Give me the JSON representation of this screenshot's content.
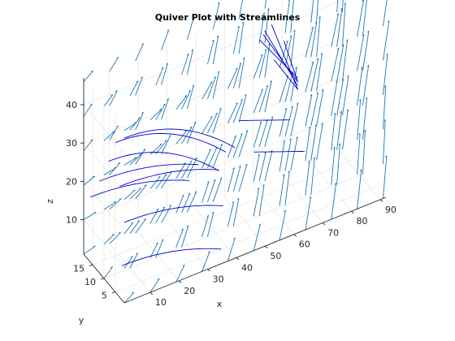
{
  "chart_data": {
    "type": "quiver3d",
    "title": "Quiver Plot with Streamlines",
    "xlabel": "x",
    "ylabel": "y",
    "zlabel": "z",
    "xlim": [
      1,
      92
    ],
    "ylim": [
      1,
      19
    ],
    "zlim": [
      1,
      47
    ],
    "x_ticks": [
      "10",
      "20",
      "30",
      "40",
      "50",
      "60",
      "70",
      "80",
      "90"
    ],
    "y_ticks": [
      "5",
      "10",
      "15"
    ],
    "z_ticks": [
      "10",
      "20",
      "30",
      "40"
    ],
    "grid": true,
    "quiver": {
      "x_grid": [
        1,
        10,
        19,
        28,
        37,
        46,
        55,
        64,
        73,
        82,
        91
      ],
      "y_grid": [
        1,
        10,
        19
      ],
      "z_grid": [
        1,
        10,
        19,
        28,
        37,
        46
      ],
      "color": "#1f77b4",
      "field": "mostly horizontal flow along +x, turning upward (+z) toward large x"
    },
    "streamlines": {
      "color": "#0000cc",
      "groups": [
        {
          "start": "x = 1, z = 10..45 (several y)",
          "direction": "+x with descent",
          "length_x": 35
        },
        {
          "start": "x = 1, z = 22..45 (several y)",
          "direction": "+x with descent",
          "length_x": 40
        },
        {
          "start": "x = 55..65, z = 40..47",
          "direction": "descending toward x = 70",
          "length_x": 15
        }
      ]
    }
  }
}
